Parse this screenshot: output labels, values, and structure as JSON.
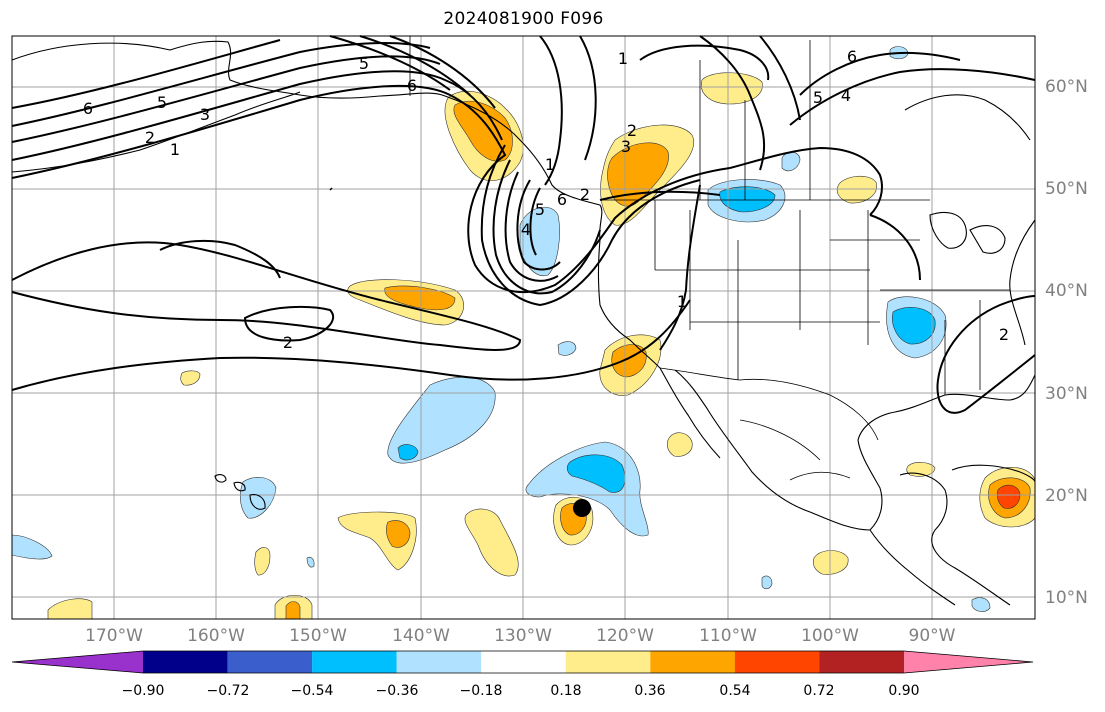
{
  "title": "2024081900 F096",
  "lat_labels": [
    "60°N",
    "50°N",
    "40°N",
    "30°N",
    "20°N",
    "10°N"
  ],
  "lon_labels": [
    "170°W",
    "160°W",
    "150°W",
    "140°W",
    "130°W",
    "120°W",
    "110°W",
    "100°W",
    "90°W"
  ],
  "colorbar": {
    "ticks": [
      "−0.90",
      "−0.72",
      "−0.54",
      "−0.36",
      "−0.18",
      "0.18",
      "0.36",
      "0.54",
      "0.72",
      "0.90"
    ],
    "colors": [
      "#9932cc",
      "#00008b",
      "#3a5fcd",
      "#00bfff",
      "#b0e2ff",
      "#ffffff",
      "#ffec8b",
      "#ffa500",
      "#ff4500",
      "#b22222",
      "#ff82ab"
    ]
  },
  "contour_labels": [
    "6",
    "5",
    "3",
    "2",
    "1",
    "5",
    "6",
    "1",
    "2",
    "3",
    "4",
    "5",
    "6",
    "1",
    "6",
    "5",
    "4",
    "2",
    "2",
    "1",
    "2"
  ],
  "colors": {
    "land_outline": "#000000",
    "grid": "#a0a0a0",
    "contour": "#000000",
    "marker": "#000000"
  }
}
